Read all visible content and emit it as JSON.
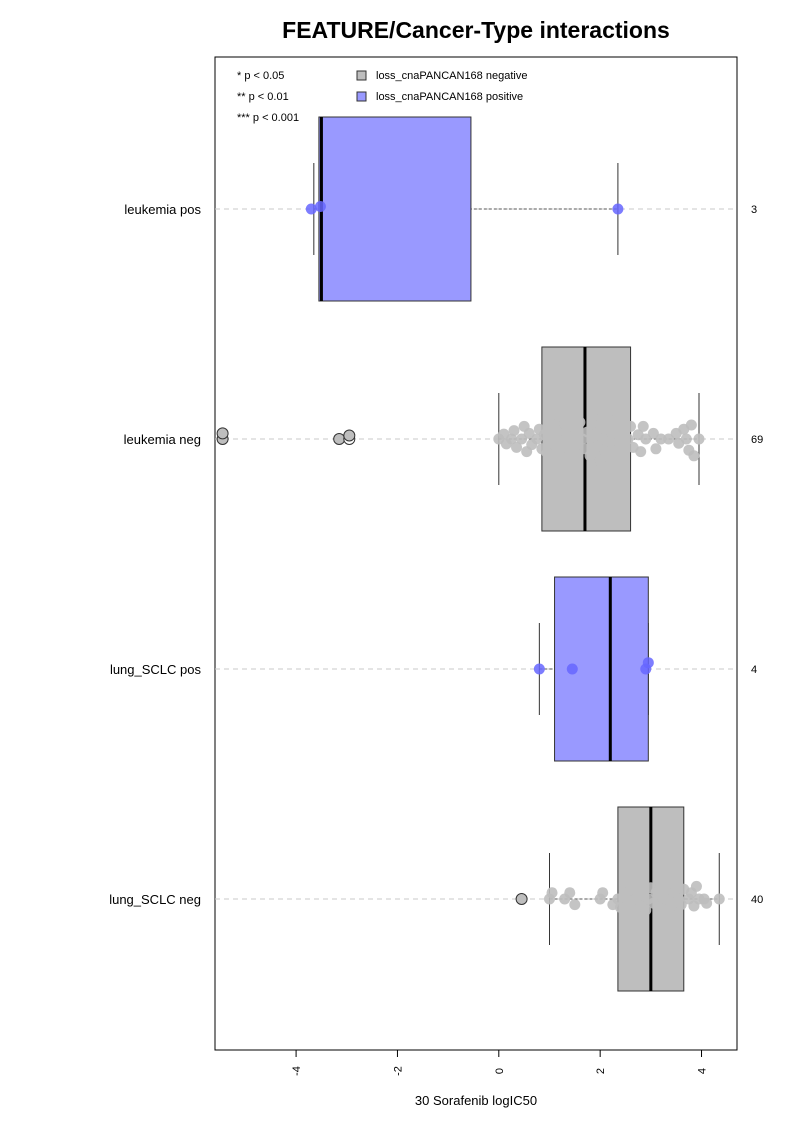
{
  "chart_data": {
    "type": "boxplot",
    "title": "FEATURE/Cancer-Type interactions",
    "xlabel": "30 Sorafenib logIC50",
    "xlim": [
      -5.6,
      4.7
    ],
    "xticks": [
      -4,
      -2,
      0,
      2,
      4
    ],
    "xtick_labels": [
      "-4",
      "-2",
      "0",
      "2",
      "4"
    ],
    "grid": false,
    "significance_legend": [
      "* p < 0.05",
      "** p < 0.01",
      "*** p < 0.001"
    ],
    "legend": [
      {
        "label": "loss_cnaPANCAN168 negative",
        "color": "#bebebe"
      },
      {
        "label": "loss_cnaPANCAN168 positive",
        "color": "#9999ff"
      }
    ],
    "groups": [
      {
        "label": "leukemia pos",
        "n": "3",
        "status": "positive",
        "box": {
          "q1": -3.55,
          "median": -3.5,
          "q3": -0.55,
          "whisker_low": -3.65,
          "whisker_high": 2.35
        },
        "points": [
          [
            -3.7,
            0.0
          ],
          [
            -3.52,
            0.18
          ],
          [
            2.35,
            0.0
          ]
        ],
        "outliers": []
      },
      {
        "label": "leukemia neg",
        "n": "69",
        "status": "negative",
        "box": {
          "q1": 0.85,
          "median": 1.7,
          "q3": 2.6,
          "whisker_low": 0.0,
          "whisker_high": 3.95
        },
        "points": [
          [
            0.0,
            0.0
          ],
          [
            0.1,
            0.35
          ],
          [
            0.15,
            -0.35
          ],
          [
            0.25,
            0.0
          ],
          [
            0.3,
            0.6
          ],
          [
            0.35,
            -0.6
          ],
          [
            0.45,
            0.0
          ],
          [
            0.5,
            0.9
          ],
          [
            0.55,
            -0.9
          ],
          [
            0.6,
            0.4
          ],
          [
            0.65,
            -0.4
          ],
          [
            0.75,
            0.0
          ],
          [
            0.8,
            0.7
          ],
          [
            0.85,
            -0.7
          ],
          [
            0.9,
            0.3
          ],
          [
            0.95,
            -1.0
          ],
          [
            1.0,
            1.2
          ],
          [
            1.05,
            0.0
          ],
          [
            1.1,
            -0.4
          ],
          [
            1.15,
            0.5
          ],
          [
            1.2,
            -0.8
          ],
          [
            1.3,
            1.1
          ],
          [
            1.35,
            0.2
          ],
          [
            1.4,
            -1.1
          ],
          [
            1.5,
            0.8
          ],
          [
            1.55,
            -0.3
          ],
          [
            1.6,
            1.2
          ],
          [
            1.65,
            0.0
          ],
          [
            1.7,
            -0.7
          ],
          [
            1.75,
            0.5
          ],
          [
            1.8,
            -1.2
          ],
          [
            1.85,
            1.6
          ],
          [
            1.9,
            0.2
          ],
          [
            1.95,
            -0.5
          ],
          [
            2.0,
            1.0
          ],
          [
            2.0,
            -1.5
          ],
          [
            2.05,
            0.0
          ],
          [
            2.0,
            -2.2
          ],
          [
            2.1,
            0.7
          ],
          [
            2.1,
            -0.9
          ],
          [
            2.15,
            1.5
          ],
          [
            2.2,
            -0.2
          ],
          [
            2.3,
            0.4
          ],
          [
            2.35,
            -1.0
          ],
          [
            2.55,
            0.0
          ],
          [
            2.6,
            0.9
          ],
          [
            2.65,
            -0.6
          ],
          [
            2.75,
            0.3
          ],
          [
            2.8,
            -0.9
          ],
          [
            2.85,
            0.9
          ],
          [
            2.9,
            0.0
          ],
          [
            3.05,
            0.4
          ],
          [
            3.1,
            -0.7
          ],
          [
            3.2,
            0.0
          ],
          [
            3.35,
            0.0
          ],
          [
            3.5,
            0.4
          ],
          [
            3.55,
            -0.3
          ],
          [
            3.65,
            0.7
          ],
          [
            3.7,
            0.0
          ],
          [
            3.75,
            -0.8
          ],
          [
            3.8,
            1.0
          ],
          [
            3.85,
            -1.2
          ],
          [
            3.95,
            0.0
          ]
        ],
        "outliers": [
          [
            -5.45,
            0.0
          ],
          [
            -5.45,
            0.4
          ],
          [
            -3.15,
            0.0
          ],
          [
            -2.95,
            0.0
          ],
          [
            -2.95,
            0.25
          ]
        ],
        "outlier_fills": [
          "#bebebe",
          "#bebebe",
          "#bebebe",
          "#ffffff",
          "#bebebe"
        ]
      },
      {
        "label": "lung_SCLC pos",
        "n": "4",
        "status": "positive",
        "box": {
          "q1": 1.1,
          "median": 2.2,
          "q3": 2.95,
          "whisker_low": 0.8,
          "whisker_high": 2.95
        },
        "points": [
          [
            0.8,
            0.0
          ],
          [
            1.45,
            0.0
          ],
          [
            2.9,
            0.0
          ],
          [
            2.95,
            0.45
          ]
        ],
        "outliers": []
      },
      {
        "label": "lung_SCLC neg",
        "n": "40",
        "status": "negative",
        "box": {
          "q1": 2.35,
          "median": 3.0,
          "q3": 3.65,
          "whisker_low": 1.0,
          "whisker_high": 4.35
        },
        "points": [
          [
            1.0,
            0.0
          ],
          [
            1.05,
            0.45
          ],
          [
            1.3,
            0.0
          ],
          [
            1.4,
            0.45
          ],
          [
            1.5,
            -0.4
          ],
          [
            2.0,
            0.0
          ],
          [
            2.05,
            0.45
          ],
          [
            2.25,
            -0.4
          ],
          [
            2.35,
            0.0
          ],
          [
            2.4,
            -0.6
          ],
          [
            2.5,
            0.45
          ],
          [
            2.55,
            -0.2
          ],
          [
            2.6,
            0.7
          ],
          [
            2.7,
            0.0
          ],
          [
            2.8,
            -0.5
          ],
          [
            2.85,
            0.45
          ],
          [
            2.9,
            -0.8
          ],
          [
            2.95,
            0.0
          ],
          [
            3.0,
            0.8
          ],
          [
            3.05,
            -0.3
          ],
          [
            3.1,
            0.45
          ],
          [
            3.15,
            -0.6
          ],
          [
            3.2,
            1.0
          ],
          [
            3.3,
            0.0
          ],
          [
            3.4,
            -0.5
          ],
          [
            3.45,
            0.45
          ],
          [
            3.55,
            0.0
          ],
          [
            3.6,
            -0.4
          ],
          [
            3.65,
            0.7
          ],
          [
            3.75,
            0.0
          ],
          [
            3.8,
            0.45
          ],
          [
            3.85,
            -0.5
          ],
          [
            3.9,
            0.9
          ],
          [
            3.95,
            0.0
          ],
          [
            4.05,
            0.0
          ],
          [
            4.1,
            -0.3
          ],
          [
            4.35,
            0.0
          ]
        ],
        "outliers": [
          [
            0.45,
            0.0
          ]
        ],
        "outlier_fills": [
          "#bebebe"
        ]
      }
    ]
  }
}
